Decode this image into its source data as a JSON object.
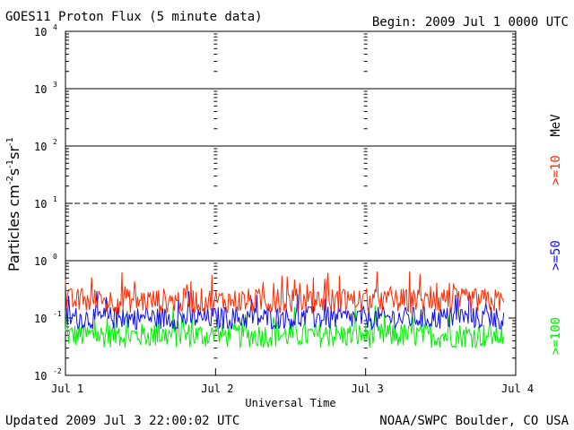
{
  "header": {
    "title": "GOES11 Proton Flux (5 minute data)",
    "begin": "Begin: 2009 Jul 1 0000 UTC"
  },
  "footer": {
    "updated": "Updated 2009 Jul  3 22:00:02 UTC",
    "source": "NOAA/SWPC Boulder, CO USA"
  },
  "chart_data": {
    "type": "line",
    "title": "GOES11 Proton Flux (5 minute data)",
    "xlabel": "Universal Time",
    "ylabel_parts": [
      "Particles cm",
      "-2",
      "s",
      "-1",
      "sr",
      "-1"
    ],
    "y_scale": "log",
    "ylim": [
      0.01,
      10000
    ],
    "y_ticks": [
      {
        "base": "10",
        "exp": "-2"
      },
      {
        "base": "10",
        "exp": "-1"
      },
      {
        "base": "10",
        "exp": "0"
      },
      {
        "base": "10",
        "exp": "1"
      },
      {
        "base": "10",
        "exp": "2"
      },
      {
        "base": "10",
        "exp": "3"
      },
      {
        "base": "10",
        "exp": "4"
      }
    ],
    "x_ticks": [
      "Jul 1",
      "Jul 2",
      "Jul 3",
      "Jul 4"
    ],
    "xlim_days": [
      0,
      3
    ],
    "data_end_day": 2.92,
    "thresholds": [
      {
        "level": 1,
        "style": "solid"
      },
      {
        "level": 10,
        "style": "dashed"
      },
      {
        "level": 100,
        "style": "solid"
      },
      {
        "level": 1000,
        "style": "solid"
      }
    ],
    "legend_unit": "MeV",
    "series": [
      {
        "name": ">=10",
        "color": "#ff2a00",
        "center": 0.2,
        "spread": 0.22
      },
      {
        "name": ">=50",
        "color": "#1010ee",
        "center": 0.1,
        "spread": 0.2
      },
      {
        "name": ">=100",
        "color": "#00ee00",
        "center": 0.05,
        "spread": 0.22
      }
    ]
  }
}
